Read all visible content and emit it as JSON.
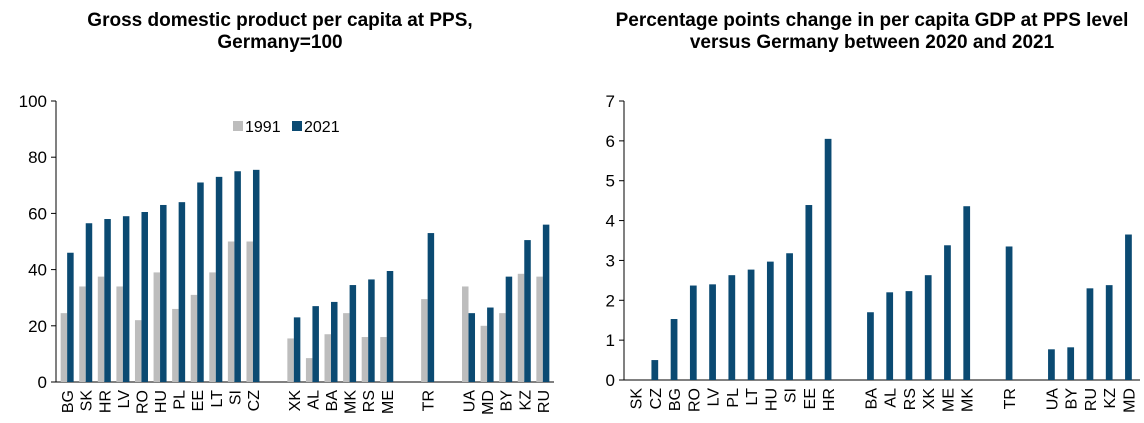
{
  "colors": {
    "y1991": "#bdbdbd",
    "y2021": "#0b4a72",
    "bar": "#0b4a72",
    "axis": "#000000"
  },
  "chart_data": [
    {
      "type": "bar",
      "title": "Gross domestic product per capita at PPS, Germany=100",
      "ylim": [
        0,
        100
      ],
      "yticks": [
        0,
        20,
        40,
        60,
        80,
        100
      ],
      "legend_position": "top",
      "grid": false,
      "groups": [
        [
          "BG",
          "SK",
          "HR",
          "LV",
          "RO",
          "HU",
          "PL",
          "EE",
          "LT",
          "SI",
          "CZ"
        ],
        [
          "XK",
          "AL",
          "BA",
          "MK",
          "RS",
          "ME"
        ],
        [
          "TR"
        ],
        [
          "UA",
          "MD",
          "BY",
          "KZ",
          "RU"
        ]
      ],
      "series": [
        {
          "name": "1991",
          "values": [
            [
              24.5,
              34,
              37.5,
              34,
              22,
              39,
              26,
              31,
              39,
              50,
              50
            ],
            [
              15.5,
              8.5,
              17,
              24.5,
              16,
              16
            ],
            [
              29.5
            ],
            [
              34,
              20,
              24.5,
              38.5,
              37.5
            ]
          ]
        },
        {
          "name": "2021",
          "values": [
            [
              46,
              56.5,
              58,
              59,
              60.5,
              63,
              64,
              71,
              73,
              75,
              75.5
            ],
            [
              23,
              27,
              28.5,
              34.5,
              36.5,
              39.5
            ],
            [
              53
            ],
            [
              24.5,
              26.5,
              37.5,
              50.5,
              56
            ]
          ]
        }
      ]
    },
    {
      "type": "bar",
      "title": "Percentage points change in per capita GDP at PPS level versus Germany between 2020 and 2021",
      "ylim": [
        0,
        7
      ],
      "yticks": [
        0,
        1,
        2,
        3,
        4,
        5,
        6,
        7
      ],
      "grid": false,
      "groups": [
        [
          "SK",
          "CZ",
          "BG",
          "RO",
          "LV",
          "PL",
          "LT",
          "HU",
          "SI",
          "EE",
          "HR"
        ],
        [
          "BA",
          "AL",
          "RS",
          "XK",
          "ME",
          "MK"
        ],
        [
          "TR"
        ],
        [
          "UA",
          "BY",
          "RU",
          "KZ",
          "MD"
        ]
      ],
      "values": [
        [
          0,
          0.5,
          1.53,
          2.37,
          2.4,
          2.63,
          2.77,
          2.97,
          3.18,
          4.39,
          6.05
        ],
        [
          1.7,
          2.2,
          2.23,
          2.63,
          3.38,
          4.36
        ],
        [
          3.35
        ],
        [
          0.77,
          0.82,
          2.3,
          2.38,
          3.65
        ]
      ]
    }
  ]
}
